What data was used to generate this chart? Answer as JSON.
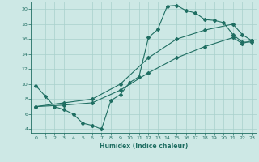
{
  "xlabel": "Humidex (Indice chaleur)",
  "xlim": [
    -0.5,
    23.5
  ],
  "ylim": [
    3.5,
    21.0
  ],
  "xticks": [
    0,
    1,
    2,
    3,
    4,
    5,
    6,
    7,
    8,
    9,
    10,
    11,
    12,
    13,
    14,
    15,
    16,
    17,
    18,
    19,
    20,
    21,
    22,
    23
  ],
  "yticks": [
    4,
    6,
    8,
    10,
    12,
    14,
    16,
    18,
    20
  ],
  "background_color": "#cde8e5",
  "grid_color": "#a8d0cc",
  "line_color": "#1f6e62",
  "line1_x": [
    0,
    1,
    2,
    3,
    4,
    5,
    6,
    7,
    8,
    9,
    10,
    11,
    12,
    13,
    14,
    15,
    16,
    17,
    18,
    19,
    20,
    21,
    22,
    23
  ],
  "line1_y": [
    9.8,
    8.4,
    7.0,
    6.6,
    6.0,
    4.8,
    4.5,
    4.0,
    7.8,
    8.6,
    10.2,
    11.0,
    16.2,
    17.3,
    20.4,
    20.5,
    19.8,
    19.5,
    18.6,
    18.5,
    18.2,
    16.6,
    15.6,
    15.6
  ],
  "line2_x": [
    0,
    3,
    6,
    9,
    12,
    15,
    18,
    21,
    22,
    23
  ],
  "line2_y": [
    7.0,
    7.5,
    8.0,
    10.0,
    13.5,
    16.0,
    17.2,
    18.0,
    16.6,
    15.8
  ],
  "line3_x": [
    0,
    3,
    6,
    9,
    12,
    15,
    18,
    21,
    22,
    23
  ],
  "line3_y": [
    7.0,
    7.2,
    7.5,
    9.2,
    11.5,
    13.5,
    15.0,
    16.2,
    15.4,
    15.8
  ]
}
